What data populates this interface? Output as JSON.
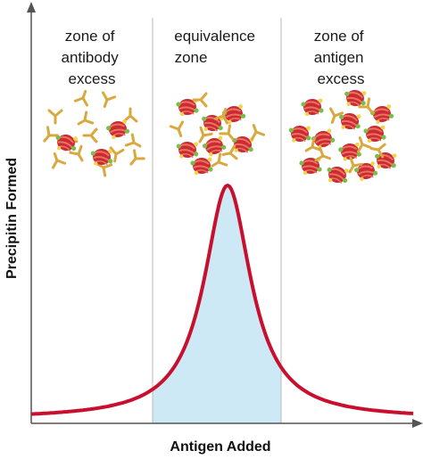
{
  "axes": {
    "x_label": "Antigen Added",
    "y_label": "Precipitin Formed"
  },
  "zones": [
    {
      "id": "antibody-excess",
      "lines": [
        "zone of",
        "antibody",
        "excess"
      ]
    },
    {
      "id": "equivalence",
      "lines": [
        "equivalence",
        "zone"
      ]
    },
    {
      "id": "antigen-excess",
      "lines": [
        "zone of",
        "antigen",
        "excess"
      ]
    }
  ],
  "colors": {
    "axis": "#555555",
    "curve": "#c8102e",
    "shade": "#cde9f6",
    "divider": "#bbbbbb",
    "antibody": "#d9a93f",
    "antigen_body": "#cc2a36",
    "antigen_stripe": "#e8745a",
    "epitope_green": "#7bbd4a",
    "epitope_yellow": "#f2d34a"
  },
  "icons": [
    "antibody-icon",
    "antigen-icon"
  ]
}
